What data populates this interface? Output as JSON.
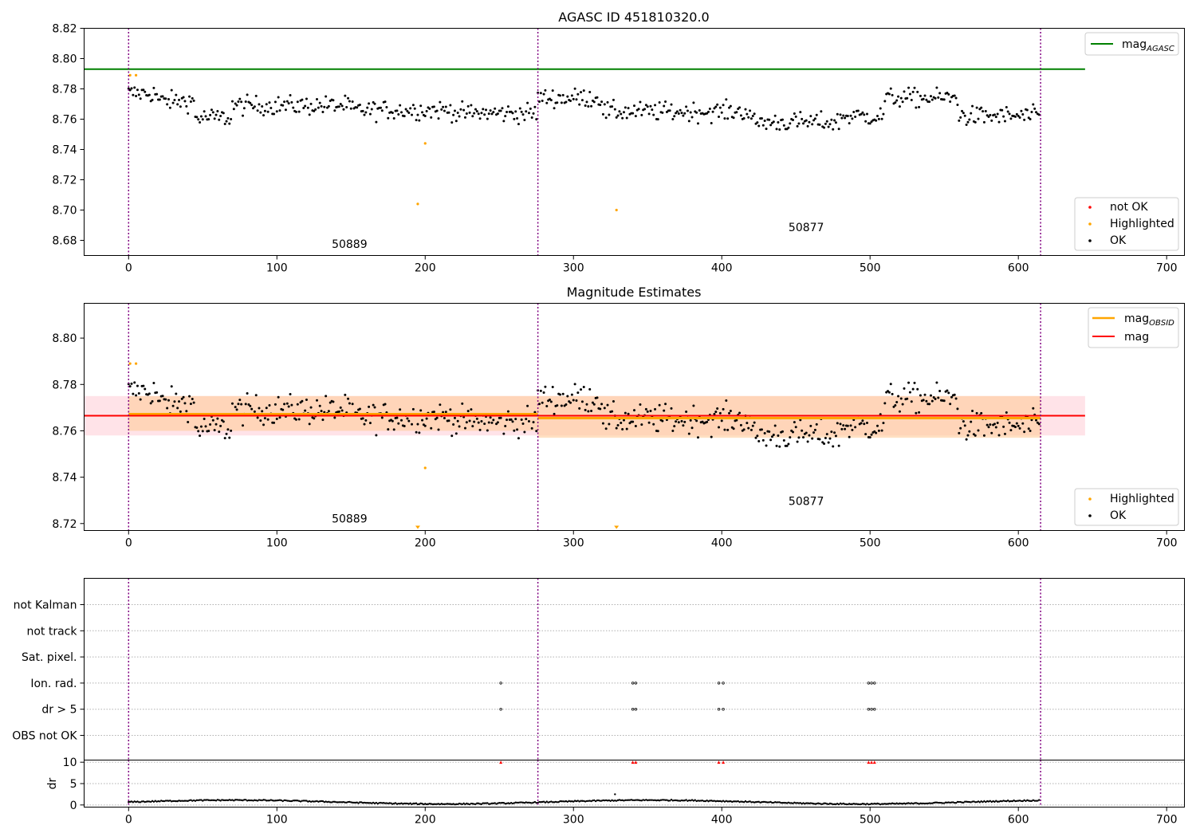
{
  "colors": {
    "ok": "#000000",
    "highlighted": "#ffa500",
    "not_ok": "#ff0000",
    "agasc_line": "#008000",
    "mag_line": "#ff0000",
    "obsid_line": "#ffa500",
    "boundary": "#800080",
    "band_outer": "#ffc0cb",
    "band_inner": "#ffcc99"
  },
  "chart_data": [
    {
      "type": "scatter",
      "title": "AGASC ID 451810320.0",
      "xlim": [
        -30,
        712
      ],
      "ylim": [
        8.67,
        8.82
      ],
      "x_ticks": [
        "0",
        "100",
        "200",
        "300",
        "400",
        "500",
        "600",
        "700"
      ],
      "x_tick_values": [
        0,
        100,
        200,
        300,
        400,
        500,
        600,
        700
      ],
      "y_ticks": [
        "8.68",
        "8.70",
        "8.72",
        "8.74",
        "8.76",
        "8.78",
        "8.80",
        "8.82"
      ],
      "y_tick_values": [
        8.68,
        8.7,
        8.72,
        8.74,
        8.76,
        8.78,
        8.8,
        8.82
      ],
      "obsid_boundaries": [
        0,
        276,
        615
      ],
      "agasc_mag": 8.793,
      "agasc_mag_xrange": [
        -30,
        645
      ],
      "obsid_labels": [
        {
          "text": "50889",
          "x": 137,
          "y": 8.675
        },
        {
          "text": "50877",
          "x": 445,
          "y": 8.686
        }
      ],
      "highlighted_points": [
        [
          1,
          8.789
        ],
        [
          5,
          8.789
        ],
        [
          195,
          8.704
        ],
        [
          200,
          8.744
        ],
        [
          329,
          8.7
        ]
      ],
      "legend": {
        "position": "upper right / lower right",
        "upper": [
          "magAGASC"
        ],
        "lower": [
          "not OK",
          "Highlighted",
          "OK"
        ]
      }
    },
    {
      "type": "scatter",
      "title": "Magnitude Estimates",
      "xlim": [
        -30,
        712
      ],
      "ylim": [
        8.717,
        8.815
      ],
      "x_ticks": [
        "0",
        "100",
        "200",
        "300",
        "400",
        "500",
        "600",
        "700"
      ],
      "x_tick_values": [
        0,
        100,
        200,
        300,
        400,
        500,
        600,
        700
      ],
      "y_ticks": [
        "8.72",
        "8.74",
        "8.76",
        "8.78",
        "8.80"
      ],
      "y_tick_values": [
        8.72,
        8.74,
        8.76,
        8.78,
        8.8
      ],
      "mag": 8.7665,
      "mag_band": [
        8.758,
        8.775
      ],
      "mag_xrange": [
        -30,
        645
      ],
      "obsid_segments": [
        {
          "x": [
            0,
            276
          ],
          "mag": 8.7672,
          "band": [
            8.76,
            8.775
          ]
        },
        {
          "x": [
            276,
            615
          ],
          "mag": 8.7655,
          "band": [
            8.757,
            8.775
          ]
        }
      ],
      "obsid_labels": [
        {
          "text": "50889",
          "x": 137,
          "y": 8.7205
        },
        {
          "text": "50877",
          "x": 445,
          "y": 8.728
        }
      ],
      "highlighted_points": [
        [
          1,
          8.789
        ],
        [
          5,
          8.789
        ],
        [
          200,
          8.744
        ]
      ],
      "offscale_markers": [
        195,
        329
      ],
      "legend": {
        "position": "upper right / lower right",
        "upper": [
          "magOBSID",
          "mag"
        ],
        "lower": [
          "Highlighted",
          "OK"
        ]
      }
    },
    {
      "type": "scatter",
      "title": "",
      "xlim": [
        -30,
        712
      ],
      "x_ticks": [
        "0",
        "100",
        "200",
        "300",
        "400",
        "500",
        "600",
        "700"
      ],
      "x_tick_values": [
        0,
        100,
        200,
        300,
        400,
        500,
        600,
        700
      ],
      "flag_rows": [
        "not Kalman",
        "not track",
        "Sat. pixel.",
        "Ion. rad.",
        "dr > 5",
        "OBS not OK"
      ],
      "flagged_x": {
        "Ion. rad.": [
          251,
          340,
          342,
          398,
          401,
          499,
          501,
          503
        ],
        "dr > 5": [
          251,
          340,
          342,
          398,
          401,
          499,
          501,
          503
        ]
      }
    },
    {
      "type": "scatter",
      "title": "",
      "ylabel": "dr",
      "xlim": [
        -30,
        712
      ],
      "ylim": [
        -0.5,
        10.5
      ],
      "y_ticks": [
        "0",
        "5",
        "10"
      ],
      "y_tick_values": [
        0,
        5,
        10
      ],
      "x_ticks": [
        "0",
        "100",
        "200",
        "300",
        "400",
        "500",
        "600",
        "700"
      ],
      "x_tick_values": [
        0,
        100,
        200,
        300,
        400,
        500,
        600,
        700
      ],
      "clipped_points_x": [
        251,
        340,
        342,
        398,
        401,
        499,
        501,
        503
      ],
      "outlier_points": [
        [
          328,
          2.5
        ]
      ],
      "dr_profile": "low values between 0 and about 1.3 for all 615 samples"
    }
  ],
  "text": {
    "legend_mag_agasc_main": "mag",
    "legend_mag_agasc_sub": "AGASC",
    "legend_mag_obsid_main": "mag",
    "legend_mag_obsid_sub": "OBSID",
    "legend_mag": "mag",
    "legend_not_ok": "not OK",
    "legend_highlighted": "Highlighted",
    "legend_ok": "OK",
    "legend_highlighted_2": "Highlighted",
    "legend_ok_2": "OK",
    "dr_label": "dr"
  }
}
